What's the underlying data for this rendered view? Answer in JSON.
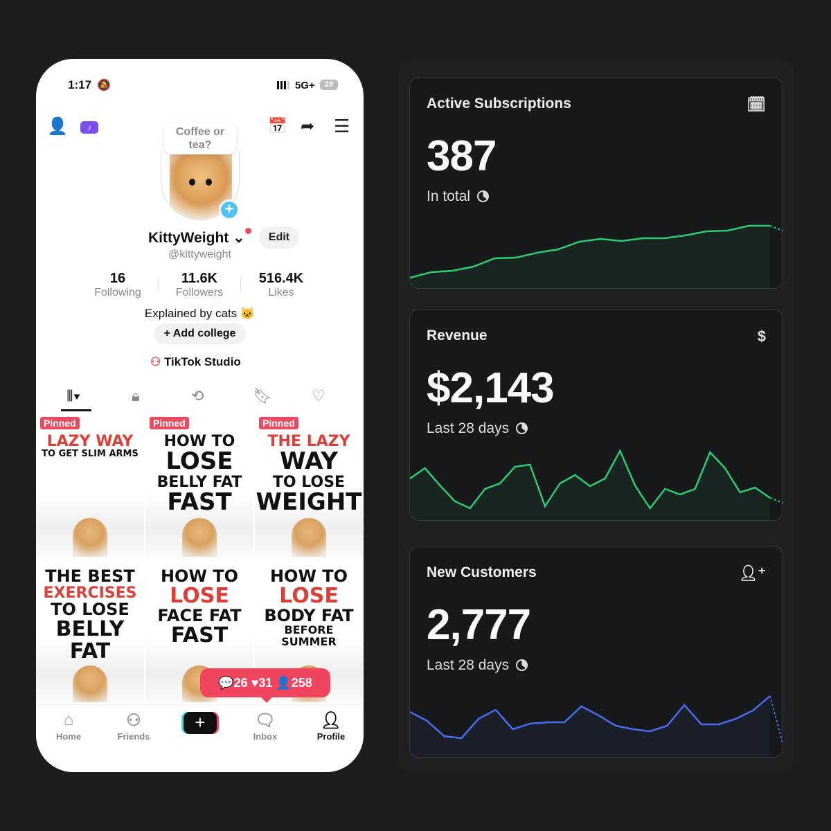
{
  "phone": {
    "status": {
      "time": "1:17",
      "network": "5G+",
      "battery": "29"
    },
    "bubble": "Coffee or tea?",
    "username": "KittyWeight",
    "edit": "Edit",
    "handle": "@kittyweight",
    "stats": [
      {
        "value": "16",
        "label": "Following"
      },
      {
        "value": "11.6K",
        "label": "Followers"
      },
      {
        "value": "516.4K",
        "label": "Likes"
      }
    ],
    "bio": "Explained by cats 🐱",
    "add_college": "+ Add college",
    "studio": "TikTok Studio",
    "pinned": "Pinned",
    "videos": [
      {
        "lines": [
          "LAZY WAY",
          "TO GET SLIM ARMS"
        ],
        "pinned": true
      },
      {
        "lines": [
          "HOW TO",
          "LOSE",
          "BELLY FAT",
          "FAST"
        ],
        "pinned": true
      },
      {
        "lines": [
          "THE LAZY",
          "WAY",
          "TO LOSE",
          "WEIGHT"
        ],
        "pinned": true
      },
      {
        "lines": [
          "THE BEST",
          "EXERCISES",
          "TO LOSE",
          "BELLY FAT"
        ],
        "pinned": false
      },
      {
        "lines": [
          "HOW TO",
          "LOSE",
          "FACE FAT",
          "FAST"
        ],
        "pinned": false
      },
      {
        "lines": [
          "HOW TO",
          "LOSE",
          "BODY FAT",
          "BEFORE SUMMER"
        ],
        "pinned": false
      }
    ],
    "notif": {
      "comments": "26",
      "likes": "31",
      "followers": "258"
    },
    "nav": [
      "Home",
      "Friends",
      "Inbox",
      "Profile"
    ]
  },
  "cards": [
    {
      "title": "Active Subscriptions",
      "value": "387",
      "sub": "In total",
      "icon": "calendar-icon",
      "color": "#2ecc71",
      "values": [
        10,
        18,
        20,
        26,
        38,
        39,
        46,
        51,
        62,
        66,
        63,
        67,
        67,
        71,
        77,
        78,
        85,
        85
      ]
    },
    {
      "title": "Revenue",
      "value": "$2,143",
      "sub": "Last 28 days",
      "icon": "dollar-icon",
      "color": "#2ecc71",
      "values": [
        55,
        70,
        45,
        22,
        12,
        40,
        48,
        72,
        75,
        15,
        48,
        60,
        44,
        55,
        95,
        45,
        12,
        40,
        32,
        40,
        93,
        70,
        35,
        42,
        27
      ]
    },
    {
      "title": "New Customers",
      "value": "2,777",
      "sub": "Last 28 days",
      "icon": "add-user-icon",
      "color": "#4a6cf0",
      "values": [
        60,
        47,
        25,
        22,
        50,
        63,
        35,
        43,
        45,
        45,
        68,
        55,
        40,
        35,
        32,
        40,
        70,
        42,
        42,
        50,
        62,
        83
      ]
    }
  ]
}
